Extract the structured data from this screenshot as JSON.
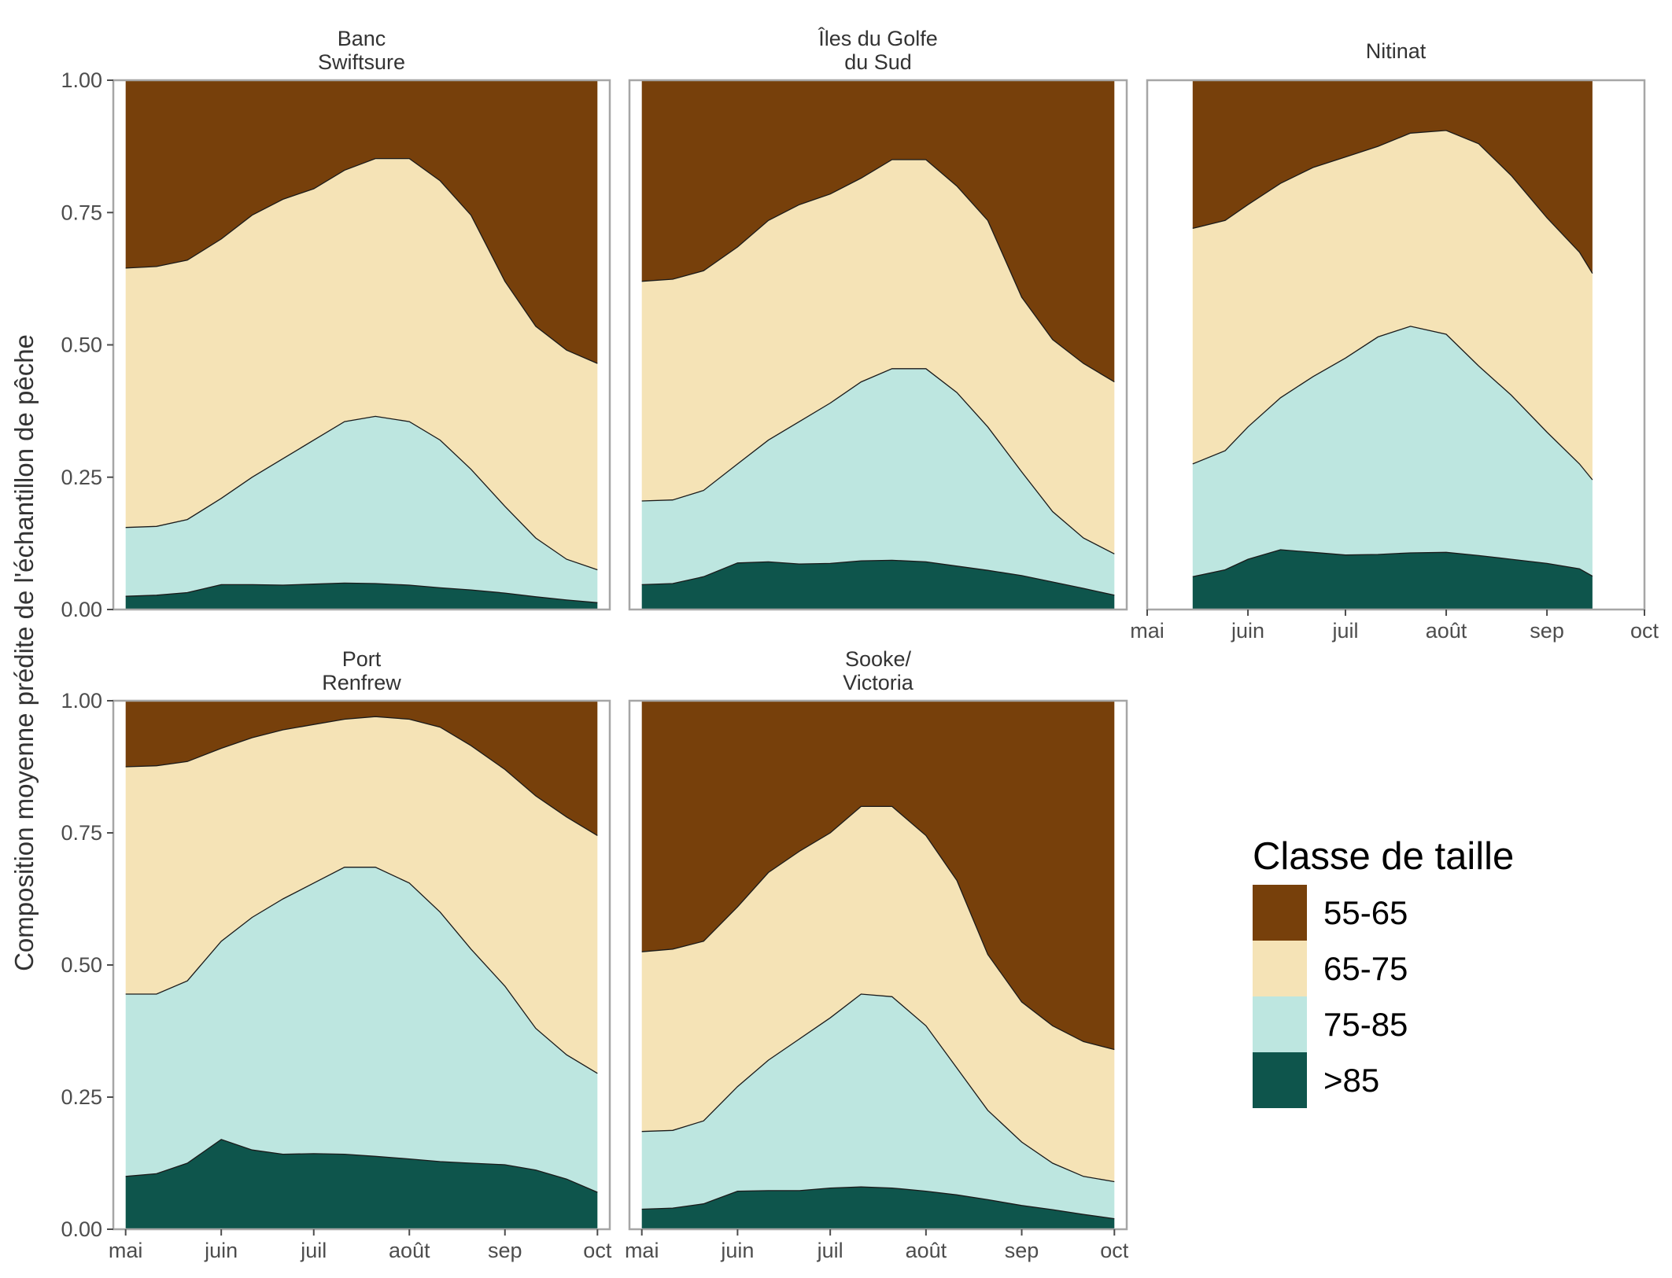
{
  "chart_data": {
    "type": "area",
    "stacked": true,
    "ylabel": "Composition moyenne prédite de l'échantillon de pêche",
    "ylim": [
      0,
      1
    ],
    "y_ticks": [
      "0.00",
      "0.25",
      "0.50",
      "0.75",
      "1.00"
    ],
    "x_ticks": [
      "mai",
      "juin",
      "juil",
      "août",
      "sep",
      "oct"
    ],
    "legend": {
      "title": "Classe de taille",
      "placement": "right",
      "entries": [
        {
          "label": "55-65",
          "color": "#77400B"
        },
        {
          "label": "65-75",
          "color": "#F5E3B6"
        },
        {
          "label": "75-85",
          "color": "#BDE6E0"
        },
        {
          "label": ">85",
          "color": "#0E554C"
        }
      ]
    },
    "series_order_bottom_to_top": [
      ">85",
      "75-85",
      "65-75",
      "55-65"
    ],
    "panels": [
      {
        "title": "Banc\nSwiftsure",
        "x": [
          "05-01",
          "05-11",
          "05-21",
          "06-01",
          "06-11",
          "06-21",
          "07-01",
          "07-11",
          "07-21",
          "08-01",
          "08-11",
          "08-21",
          "09-01",
          "09-11",
          "09-21",
          "10-01"
        ],
        "cum_gt85": [
          0.025,
          0.027,
          0.032,
          0.047,
          0.047,
          0.046,
          0.048,
          0.05,
          0.049,
          0.046,
          0.041,
          0.037,
          0.031,
          0.024,
          0.018,
          0.013
        ],
        "cum_75_85": [
          0.155,
          0.157,
          0.17,
          0.21,
          0.25,
          0.285,
          0.32,
          0.355,
          0.365,
          0.355,
          0.32,
          0.265,
          0.195,
          0.135,
          0.095,
          0.075
        ],
        "cum_65_75": [
          0.645,
          0.648,
          0.66,
          0.7,
          0.745,
          0.775,
          0.795,
          0.83,
          0.852,
          0.852,
          0.81,
          0.745,
          0.62,
          0.535,
          0.49,
          0.465
        ]
      },
      {
        "title": "Îles du Golfe\ndu Sud",
        "x": [
          "05-01",
          "05-11",
          "05-21",
          "06-01",
          "06-11",
          "06-21",
          "07-01",
          "07-11",
          "07-21",
          "08-01",
          "08-11",
          "08-21",
          "09-01",
          "09-11",
          "09-21",
          "10-01"
        ],
        "cum_gt85": [
          0.047,
          0.049,
          0.062,
          0.088,
          0.09,
          0.086,
          0.087,
          0.092,
          0.093,
          0.09,
          0.082,
          0.074,
          0.064,
          0.052,
          0.04,
          0.027
        ],
        "cum_75_85": [
          0.205,
          0.207,
          0.225,
          0.275,
          0.32,
          0.355,
          0.39,
          0.43,
          0.455,
          0.455,
          0.41,
          0.345,
          0.26,
          0.185,
          0.135,
          0.105
        ],
        "cum_65_75": [
          0.62,
          0.624,
          0.64,
          0.685,
          0.735,
          0.765,
          0.785,
          0.815,
          0.85,
          0.85,
          0.8,
          0.735,
          0.59,
          0.51,
          0.465,
          0.43
        ]
      },
      {
        "title": "Nitinat",
        "x": [
          "05-15",
          "05-25",
          "06-01",
          "06-11",
          "06-21",
          "07-01",
          "07-11",
          "07-21",
          "08-01",
          "08-11",
          "08-21",
          "09-01",
          "09-11",
          "09-15"
        ],
        "cum_gt85": [
          0.062,
          0.075,
          0.095,
          0.113,
          0.108,
          0.103,
          0.104,
          0.107,
          0.108,
          0.102,
          0.095,
          0.087,
          0.077,
          0.063
        ],
        "cum_75_85": [
          0.275,
          0.3,
          0.345,
          0.4,
          0.44,
          0.475,
          0.515,
          0.535,
          0.52,
          0.46,
          0.405,
          0.335,
          0.275,
          0.245
        ],
        "cum_65_75": [
          0.72,
          0.735,
          0.765,
          0.805,
          0.835,
          0.855,
          0.875,
          0.9,
          0.905,
          0.88,
          0.82,
          0.74,
          0.675,
          0.635
        ]
      },
      {
        "title": "Port\nRenfrew",
        "x": [
          "05-01",
          "05-11",
          "05-21",
          "06-01",
          "06-11",
          "06-21",
          "07-01",
          "07-11",
          "07-21",
          "08-01",
          "08-11",
          "08-21",
          "09-01",
          "09-11",
          "09-21",
          "10-01"
        ],
        "cum_gt85": [
          0.1,
          0.105,
          0.125,
          0.17,
          0.15,
          0.142,
          0.143,
          0.142,
          0.138,
          0.133,
          0.128,
          0.125,
          0.122,
          0.112,
          0.095,
          0.07
        ],
        "cum_75_85": [
          0.445,
          0.445,
          0.47,
          0.545,
          0.59,
          0.625,
          0.655,
          0.685,
          0.685,
          0.655,
          0.6,
          0.53,
          0.46,
          0.38,
          0.33,
          0.295
        ],
        "cum_65_75": [
          0.875,
          0.877,
          0.885,
          0.91,
          0.93,
          0.945,
          0.955,
          0.965,
          0.97,
          0.965,
          0.95,
          0.915,
          0.87,
          0.82,
          0.78,
          0.745
        ]
      },
      {
        "title": "Sooke/\nVictoria",
        "x": [
          "05-01",
          "05-11",
          "05-21",
          "06-01",
          "06-11",
          "06-21",
          "07-01",
          "07-11",
          "07-21",
          "08-01",
          "08-11",
          "08-21",
          "09-01",
          "09-11",
          "09-21",
          "10-01"
        ],
        "cum_gt85": [
          0.038,
          0.04,
          0.048,
          0.072,
          0.073,
          0.073,
          0.078,
          0.08,
          0.078,
          0.072,
          0.065,
          0.056,
          0.045,
          0.037,
          0.028,
          0.02
        ],
        "cum_75_85": [
          0.185,
          0.187,
          0.205,
          0.27,
          0.32,
          0.36,
          0.4,
          0.445,
          0.44,
          0.385,
          0.305,
          0.225,
          0.165,
          0.125,
          0.1,
          0.09
        ],
        "cum_65_75": [
          0.525,
          0.53,
          0.545,
          0.61,
          0.675,
          0.715,
          0.75,
          0.8,
          0.8,
          0.745,
          0.66,
          0.52,
          0.43,
          0.385,
          0.355,
          0.34
        ]
      }
    ]
  }
}
